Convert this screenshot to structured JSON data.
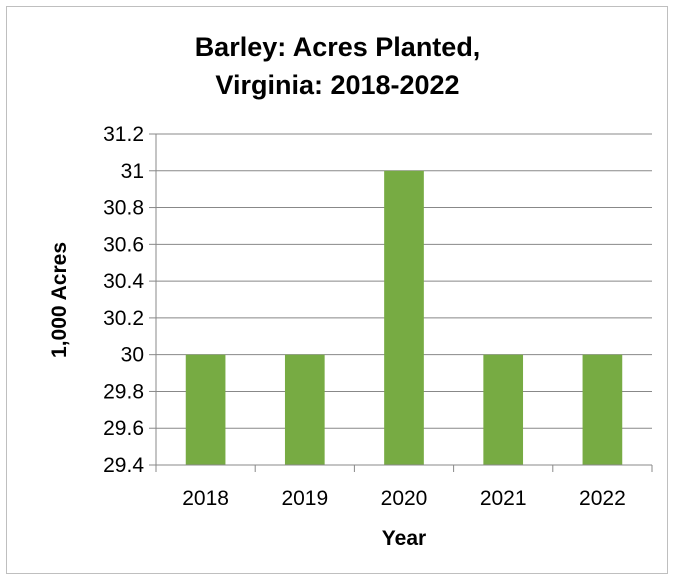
{
  "chart_data": {
    "type": "bar",
    "title_lines": [
      "Barley: Acres Planted,",
      "Virginia: 2018-2022"
    ],
    "xlabel": "Year",
    "ylabel": "1,000 Acres",
    "categories": [
      "2018",
      "2019",
      "2020",
      "2021",
      "2022"
    ],
    "values": [
      30,
      30,
      31,
      30,
      30
    ],
    "ylim": [
      29.4,
      31.2
    ],
    "ytick_labels": [
      "29.4",
      "29.6",
      "29.8",
      "30",
      "30.2",
      "30.4",
      "30.6",
      "30.8",
      "31",
      "31.2"
    ],
    "grid": true,
    "legend": "none",
    "bar_color": "#77AB43",
    "gridline_color": "#888888"
  }
}
